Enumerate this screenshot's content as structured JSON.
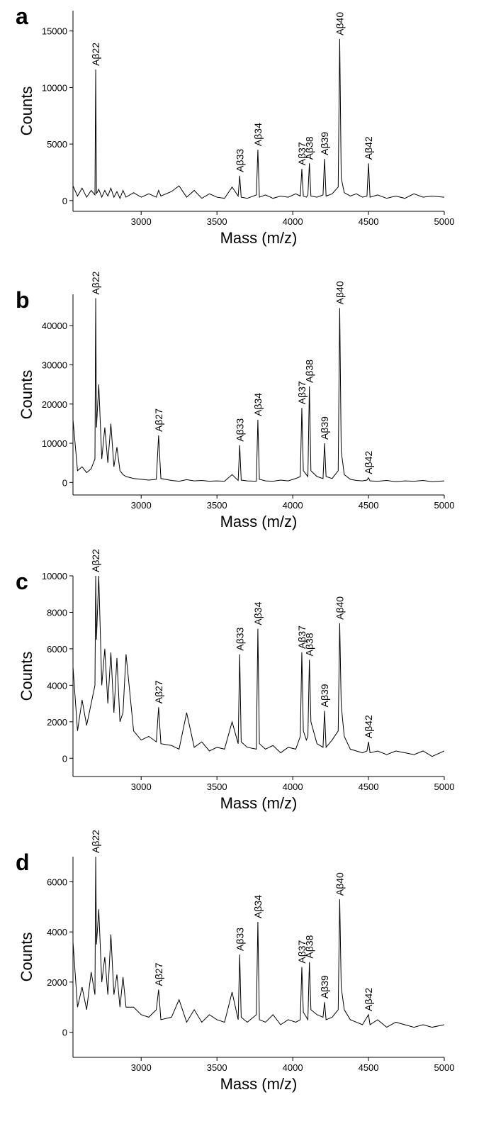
{
  "chart_data": [
    {
      "type": "line",
      "panel_label": "a",
      "ylabel": "Counts",
      "xlabel": "Mass (m/z)",
      "color": "#000000",
      "xlim": [
        2550,
        5000
      ],
      "ylim": [
        -950,
        16800
      ],
      "xticks": [
        3000,
        3500,
        4000,
        4500,
        5000
      ],
      "yticks": [
        0,
        5000,
        10000,
        15000
      ],
      "x": [
        2550,
        2580,
        2610,
        2640,
        2670,
        2695,
        2700,
        2705,
        2720,
        2740,
        2760,
        2780,
        2800,
        2820,
        2840,
        2860,
        2880,
        2900,
        2950,
        3000,
        3050,
        3100,
        3115,
        3130,
        3200,
        3250,
        3300,
        3350,
        3400,
        3450,
        3500,
        3550,
        3600,
        3640,
        3650,
        3660,
        3700,
        3760,
        3770,
        3780,
        3820,
        3870,
        3920,
        3970,
        4020,
        4050,
        4060,
        4070,
        4090,
        4100,
        4110,
        4120,
        4160,
        4200,
        4210,
        4220,
        4260,
        4300,
        4310,
        4320,
        4340,
        4380,
        4420,
        4460,
        4490,
        4500,
        4510,
        4560,
        4620,
        4680,
        4740,
        4800,
        4860,
        4920,
        5000
      ],
      "values": [
        1300,
        400,
        1100,
        300,
        900,
        500,
        11600,
        600,
        1000,
        300,
        900,
        400,
        1100,
        300,
        800,
        200,
        900,
        300,
        700,
        300,
        600,
        300,
        900,
        400,
        800,
        1300,
        300,
        900,
        200,
        600,
        300,
        200,
        1200,
        400,
        2200,
        300,
        200,
        500,
        4500,
        300,
        500,
        200,
        400,
        300,
        600,
        400,
        2800,
        400,
        300,
        500,
        3300,
        400,
        300,
        500,
        3700,
        400,
        600,
        1200,
        14300,
        2000,
        700,
        400,
        600,
        300,
        400,
        3300,
        300,
        500,
        200,
        400,
        200,
        600,
        300,
        400,
        300
      ],
      "annotations": [
        {
          "text": "Aβ22",
          "x": 2700
        },
        {
          "text": "Aβ33",
          "x": 3650
        },
        {
          "text": "Aβ34",
          "x": 3770
        },
        {
          "text": "Aβ37",
          "x": 4060
        },
        {
          "text": "Aβ38",
          "x": 4110
        },
        {
          "text": "Aβ39",
          "x": 4210
        },
        {
          "text": "Aβ40",
          "x": 4310
        },
        {
          "text": "Aβ42",
          "x": 4500
        }
      ]
    },
    {
      "type": "line",
      "panel_label": "b",
      "ylabel": "Counts",
      "xlabel": "Mass (m/z)",
      "color": "#000000",
      "xlim": [
        2550,
        5000
      ],
      "ylim": [
        -3200,
        48000
      ],
      "xticks": [
        3000,
        3500,
        4000,
        4500,
        5000
      ],
      "yticks": [
        0,
        10000,
        20000,
        30000,
        40000
      ],
      "x": [
        2550,
        2580,
        2610,
        2640,
        2670,
        2695,
        2700,
        2705,
        2720,
        2740,
        2760,
        2780,
        2800,
        2820,
        2840,
        2860,
        2880,
        2900,
        2950,
        3000,
        3050,
        3100,
        3115,
        3130,
        3200,
        3250,
        3300,
        3350,
        3400,
        3450,
        3500,
        3550,
        3600,
        3640,
        3650,
        3660,
        3700,
        3760,
        3770,
        3780,
        3820,
        3870,
        3920,
        3970,
        4020,
        4050,
        4060,
        4070,
        4090,
        4100,
        4110,
        4120,
        4160,
        4200,
        4210,
        4220,
        4260,
        4300,
        4310,
        4320,
        4340,
        4380,
        4420,
        4460,
        4490,
        4500,
        4510,
        4560,
        4620,
        4680,
        4740,
        4800,
        4860,
        4920,
        5000
      ],
      "values": [
        16000,
        3000,
        4000,
        2500,
        3500,
        6000,
        47000,
        14000,
        25000,
        6000,
        14000,
        5000,
        15000,
        4000,
        9000,
        3000,
        2000,
        1500,
        1000,
        800,
        600,
        800,
        12000,
        1000,
        500,
        300,
        700,
        400,
        500,
        300,
        400,
        300,
        2000,
        500,
        9500,
        600,
        400,
        300,
        16000,
        800,
        400,
        300,
        600,
        400,
        1000,
        1500,
        19000,
        3000,
        2000,
        1500,
        24500,
        3000,
        1500,
        1000,
        10000,
        1500,
        1000,
        3000,
        44500,
        8000,
        2000,
        800,
        500,
        400,
        600,
        1200,
        400,
        300,
        500,
        200,
        400,
        300,
        500,
        200,
        400
      ],
      "annotations": [
        {
          "text": "Aβ22",
          "x": 2700
        },
        {
          "text": "Aβ27",
          "x": 3115
        },
        {
          "text": "Aβ33",
          "x": 3650
        },
        {
          "text": "Aβ34",
          "x": 3770
        },
        {
          "text": "Aβ37",
          "x": 4060
        },
        {
          "text": "Aβ38",
          "x": 4110
        },
        {
          "text": "Aβ39",
          "x": 4210
        },
        {
          "text": "Aβ40",
          "x": 4310
        },
        {
          "text": "Aβ42",
          "x": 4500
        }
      ]
    },
    {
      "type": "line",
      "panel_label": "c",
      "ylabel": "Counts",
      "xlabel": "Mass (m/z)",
      "color": "#000000",
      "xlim": [
        2550,
        5000
      ],
      "ylim": [
        -1000,
        10000
      ],
      "xticks": [
        3000,
        3500,
        4000,
        4500,
        5000
      ],
      "yticks": [
        0,
        2000,
        4000,
        6000,
        8000,
        10000
      ],
      "x": [
        2550,
        2580,
        2610,
        2640,
        2670,
        2695,
        2700,
        2705,
        2720,
        2740,
        2760,
        2780,
        2800,
        2820,
        2840,
        2860,
        2880,
        2900,
        2950,
        3000,
        3050,
        3100,
        3115,
        3130,
        3200,
        3250,
        3300,
        3350,
        3400,
        3450,
        3500,
        3550,
        3600,
        3640,
        3650,
        3660,
        3700,
        3760,
        3770,
        3780,
        3820,
        3870,
        3920,
        3970,
        4020,
        4050,
        4060,
        4070,
        4090,
        4100,
        4110,
        4120,
        4160,
        4200,
        4210,
        4220,
        4260,
        4300,
        4310,
        4320,
        4340,
        4380,
        4420,
        4460,
        4490,
        4500,
        4510,
        4560,
        4620,
        4680,
        4740,
        4800,
        4860,
        4920,
        5000
      ],
      "values": [
        5000,
        1500,
        3200,
        1800,
        3000,
        4000,
        10000,
        6500,
        10000,
        4000,
        6000,
        3000,
        5800,
        2500,
        5500,
        2000,
        2500,
        5700,
        1500,
        1000,
        1200,
        900,
        2800,
        800,
        700,
        500,
        2500,
        600,
        900,
        400,
        600,
        500,
        2000,
        800,
        5700,
        900,
        600,
        500,
        7100,
        800,
        500,
        700,
        300,
        600,
        500,
        1200,
        5800,
        1500,
        1000,
        1200,
        5400,
        2000,
        800,
        600,
        2600,
        600,
        1000,
        1500,
        7400,
        2900,
        1200,
        500,
        400,
        300,
        400,
        900,
        300,
        400,
        200,
        400,
        300,
        200,
        400,
        100,
        400
      ],
      "annotations": [
        {
          "text": "Aβ22",
          "x": 2700
        },
        {
          "text": "Aβ27",
          "x": 3115
        },
        {
          "text": "Aβ33",
          "x": 3650
        },
        {
          "text": "Aβ34",
          "x": 3770
        },
        {
          "text": "Aβ37",
          "x": 4060
        },
        {
          "text": "Aβ38",
          "x": 4110
        },
        {
          "text": "Aβ39",
          "x": 4210
        },
        {
          "text": "Aβ40",
          "x": 4310
        },
        {
          "text": "Aβ42",
          "x": 4500
        }
      ]
    },
    {
      "type": "line",
      "panel_label": "d",
      "ylabel": "Counts",
      "xlabel": "Mass (m/z)",
      "color": "#000000",
      "xlim": [
        2550,
        5000
      ],
      "ylim": [
        -1000,
        7000
      ],
      "xticks": [
        3000,
        3500,
        4000,
        4500,
        5000
      ],
      "yticks": [
        0,
        2000,
        4000,
        6000
      ],
      "x": [
        2550,
        2580,
        2610,
        2640,
        2670,
        2695,
        2700,
        2705,
        2720,
        2740,
        2760,
        2780,
        2800,
        2820,
        2840,
        2860,
        2880,
        2900,
        2950,
        3000,
        3050,
        3100,
        3115,
        3130,
        3200,
        3250,
        3300,
        3350,
        3400,
        3450,
        3500,
        3550,
        3600,
        3640,
        3650,
        3660,
        3700,
        3760,
        3770,
        3780,
        3820,
        3870,
        3920,
        3970,
        4020,
        4050,
        4060,
        4070,
        4090,
        4100,
        4110,
        4120,
        4160,
        4200,
        4210,
        4220,
        4260,
        4300,
        4310,
        4320,
        4340,
        4380,
        4420,
        4460,
        4490,
        4500,
        4510,
        4560,
        4620,
        4680,
        4740,
        4800,
        4860,
        4920,
        5000
      ],
      "values": [
        3600,
        1000,
        1800,
        900,
        2400,
        1500,
        7000,
        3500,
        4900,
        2000,
        3000,
        1500,
        3900,
        1500,
        2300,
        1000,
        2200,
        1000,
        1000,
        700,
        600,
        900,
        1700,
        500,
        600,
        1300,
        400,
        900,
        400,
        700,
        500,
        400,
        1600,
        500,
        3100,
        600,
        400,
        700,
        4400,
        500,
        400,
        700,
        300,
        500,
        400,
        500,
        2600,
        800,
        600,
        500,
        2800,
        900,
        700,
        600,
        1200,
        500,
        600,
        900,
        5300,
        1800,
        900,
        500,
        400,
        300,
        600,
        700,
        300,
        500,
        200,
        400,
        300,
        200,
        300,
        200,
        300
      ],
      "annotations": [
        {
          "text": "Aβ22",
          "x": 2700
        },
        {
          "text": "Aβ27",
          "x": 3115
        },
        {
          "text": "Aβ33",
          "x": 3650
        },
        {
          "text": "Aβ34",
          "x": 3770
        },
        {
          "text": "Aβ37",
          "x": 4060
        },
        {
          "text": "Aβ38",
          "x": 4110
        },
        {
          "text": "Aβ39",
          "x": 4210
        },
        {
          "text": "Aβ40",
          "x": 4310
        },
        {
          "text": "Aβ42",
          "x": 4500
        }
      ]
    }
  ]
}
